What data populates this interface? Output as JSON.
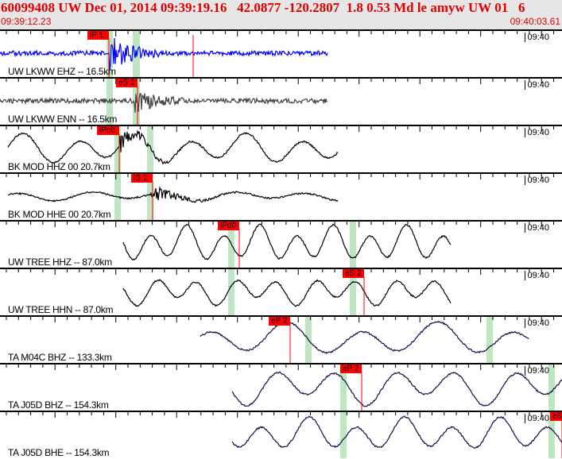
{
  "header": {
    "title": "60099408 UW Dec 01, 2014 09:39:19.16   42.0877 -120.2807  1.8 0.53 Md le amyw UW 01   6",
    "start_time": "09:39:12.23",
    "end_time": "09:40:03.61"
  },
  "colors": {
    "header_text": "#e00000",
    "pick": "#ff0000",
    "phase_window": "#bfe6c0",
    "trace_blue": "#0000ff",
    "trace_dark": "#1a0a4a"
  },
  "traces": [
    {
      "label": "UW LKWW EHZ -- 16.5km",
      "time_mark": "09:40",
      "picks": [
        "iP 1"
      ]
    },
    {
      "label": "UW LKWW ENN -- 16.5km",
      "time_mark": "09:40",
      "picks": [
        "eS 2"
      ]
    },
    {
      "label": "BK MOD HHZ 00 20.7km",
      "time_mark": "09:40",
      "picks": [
        "iPc0"
      ]
    },
    {
      "label": "BK MOD HHE 00 20.7km",
      "time_mark": "09:40",
      "picks": [
        "iS 1"
      ]
    },
    {
      "label": "UW TREE HHZ -- 87.0km",
      "time_mark": "09:40",
      "picks": [
        "iPd0"
      ]
    },
    {
      "label": "UW TREE HHN -- 87.0km",
      "time_mark": "09:40",
      "picks": [
        "eS 2"
      ]
    },
    {
      "label": "TA M04C BHZ -- 133.3km",
      "time_mark": "09:40",
      "picks": [
        "eP 2"
      ]
    },
    {
      "label": "TA J05D BHZ -- 154.3km",
      "time_mark": "09:40",
      "picks": [
        "eP 2"
      ]
    },
    {
      "label": "TA J05D BHE -- 154.3km",
      "time_mark": "09:40",
      "picks": [
        "eS"
      ]
    }
  ]
}
